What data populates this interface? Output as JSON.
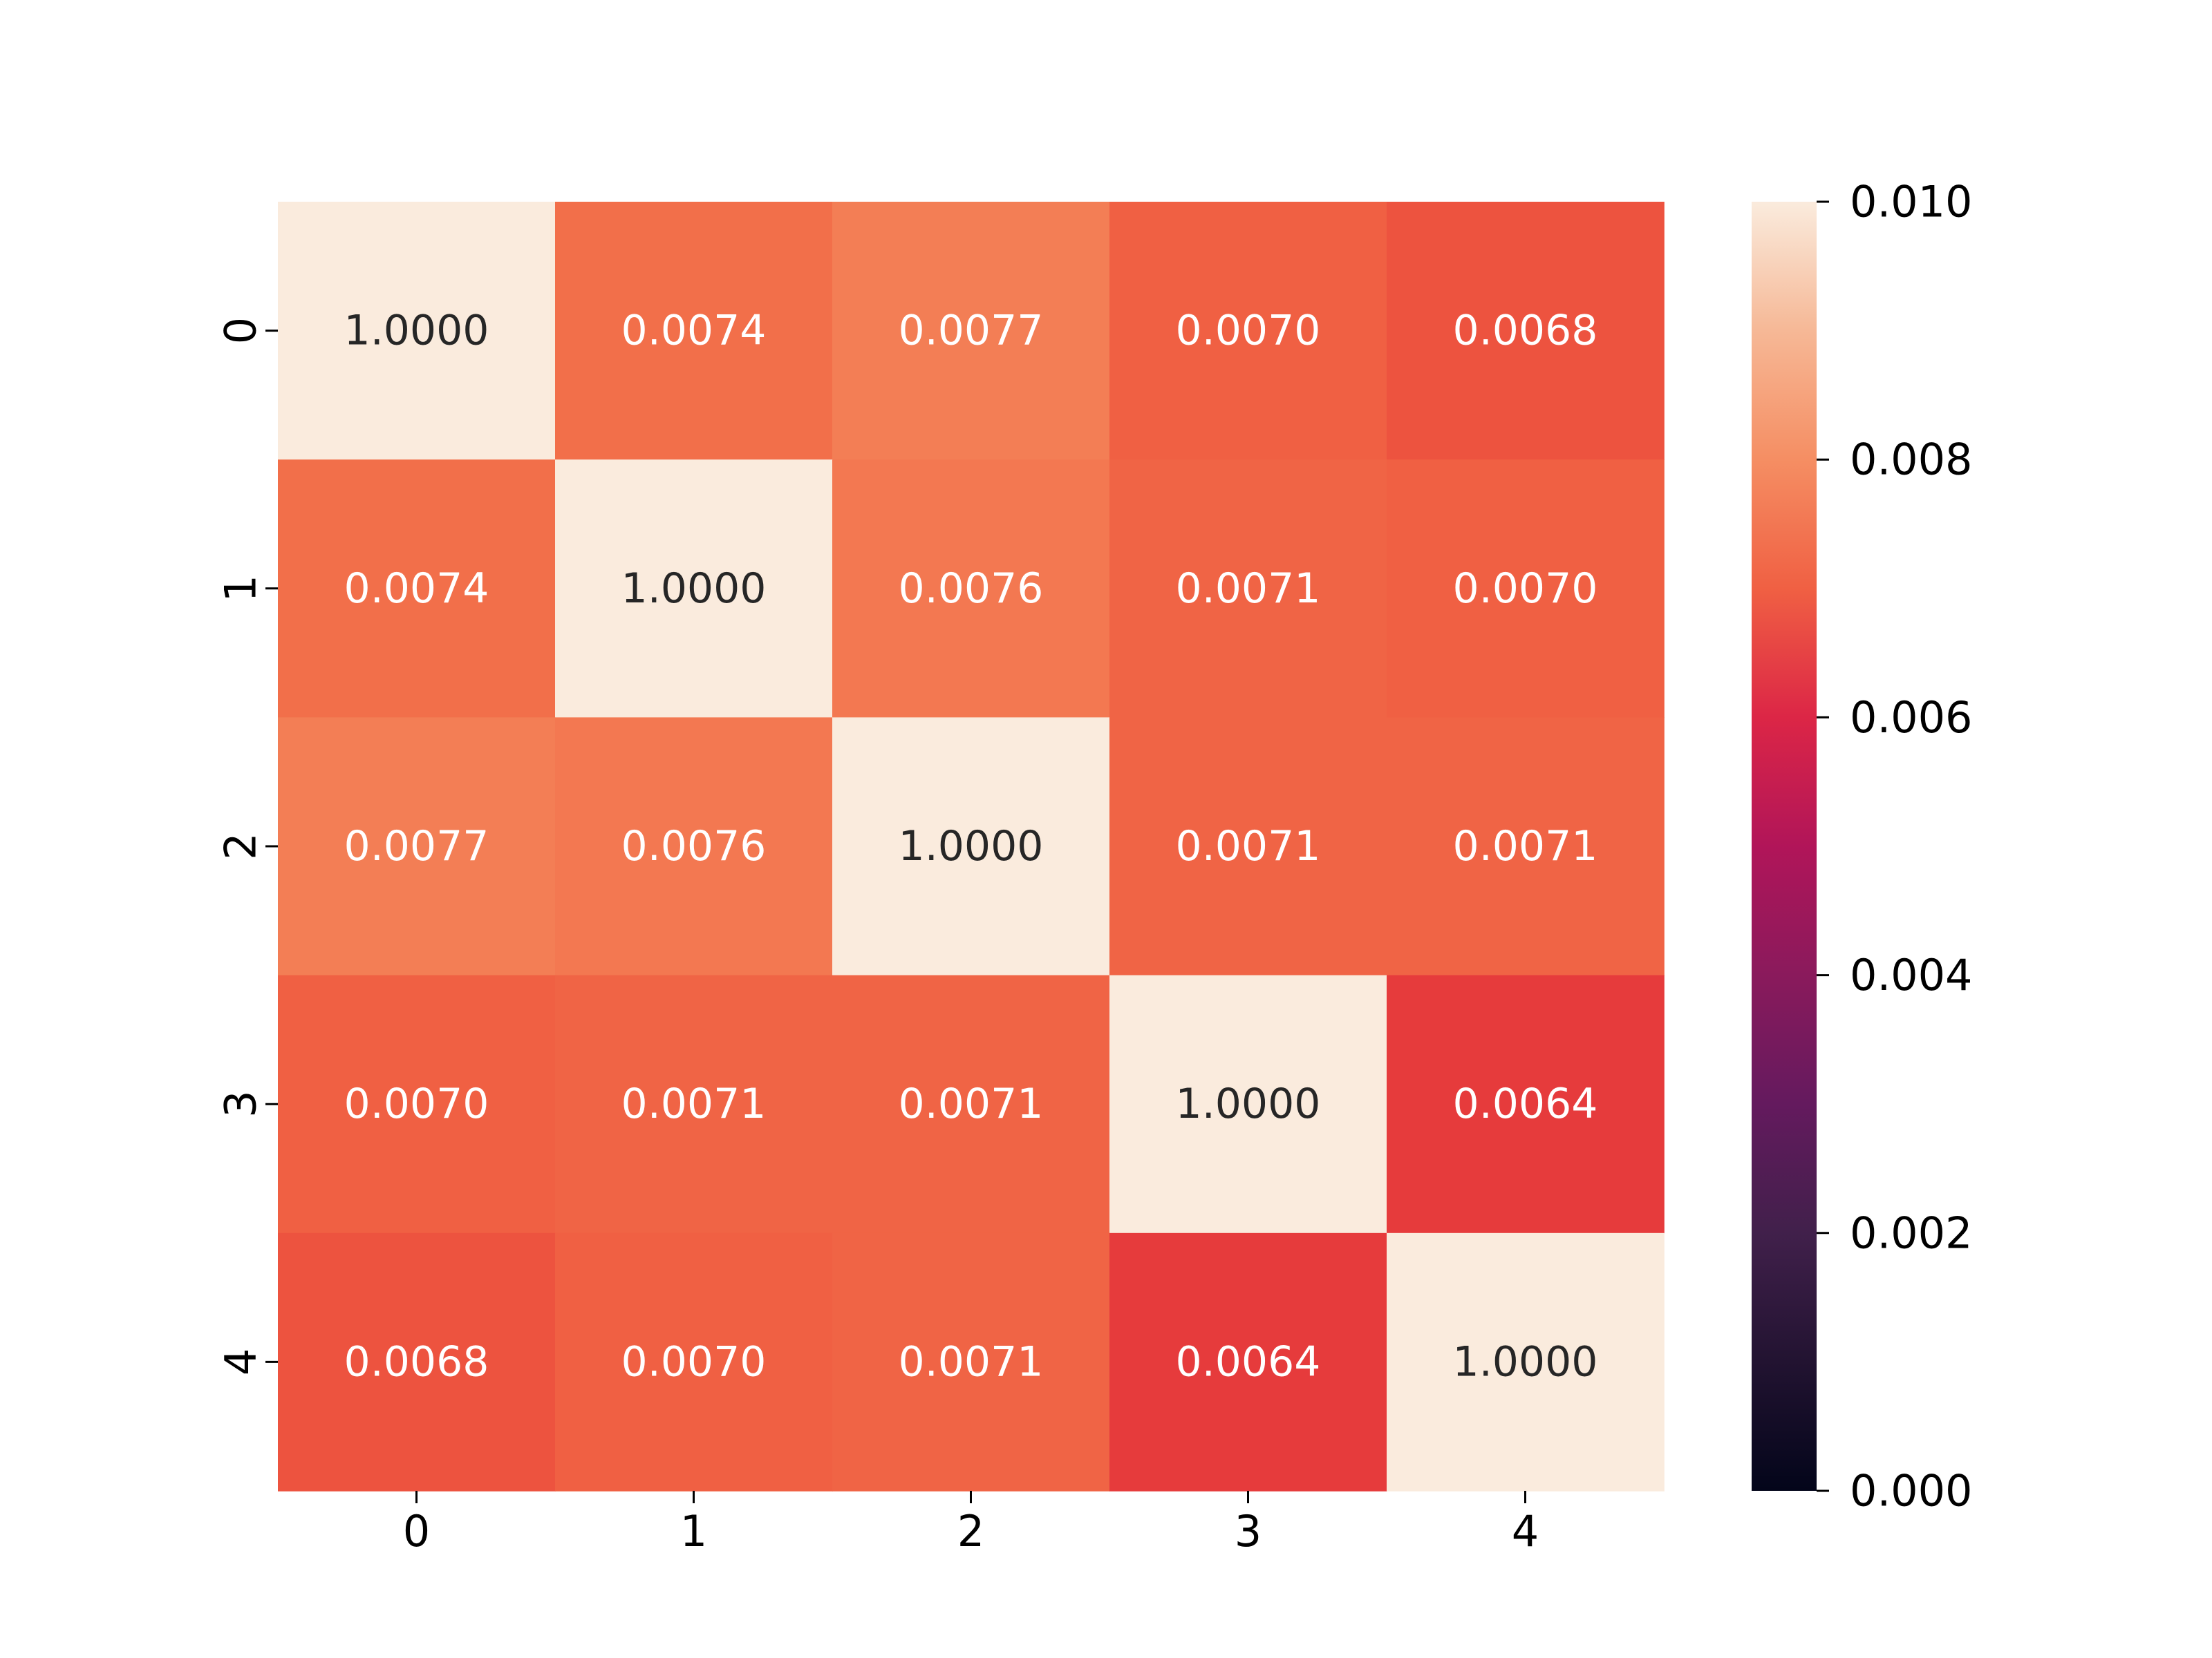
{
  "chart_data": {
    "type": "heatmap",
    "title": "",
    "xlabel": "",
    "ylabel": "",
    "x_categories": [
      "0",
      "1",
      "2",
      "3",
      "4"
    ],
    "y_categories": [
      "0",
      "1",
      "2",
      "3",
      "4"
    ],
    "values": [
      [
        1.0,
        0.0074,
        0.0077,
        0.007,
        0.0068
      ],
      [
        0.0074,
        1.0,
        0.0076,
        0.0071,
        0.007
      ],
      [
        0.0077,
        0.0076,
        1.0,
        0.0071,
        0.0071
      ],
      [
        0.007,
        0.0071,
        0.0071,
        1.0,
        0.0064
      ],
      [
        0.0068,
        0.007,
        0.0071,
        0.0064,
        1.0
      ]
    ],
    "value_format_decimals": 4,
    "colorbar": {
      "range": [
        0.0,
        0.01
      ],
      "ticks": [
        0.0,
        0.002,
        0.004,
        0.006,
        0.008,
        0.01
      ],
      "tick_labels": [
        "0.000",
        "0.002",
        "0.004",
        "0.006",
        "0.008",
        "0.010"
      ],
      "colormap": "rocket"
    },
    "grid": false
  }
}
